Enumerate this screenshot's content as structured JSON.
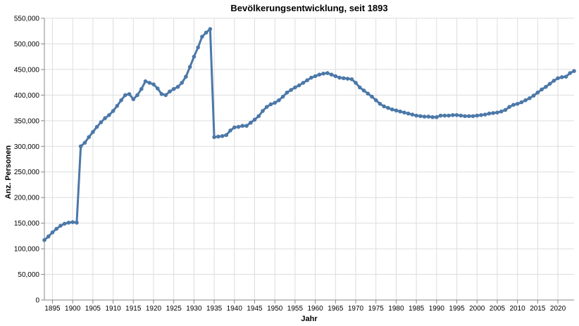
{
  "chart_data": {
    "type": "line",
    "title": "Bevölkerungsentwicklung, seit 1893",
    "xlabel": "Jahr",
    "ylabel": "Anz. Personen",
    "xlim": [
      1893,
      2024
    ],
    "ylim": [
      0,
      550000
    ],
    "grid": true,
    "x_ticks": [
      1895,
      1900,
      1905,
      1910,
      1915,
      1920,
      1925,
      1930,
      1935,
      1940,
      1945,
      1950,
      1955,
      1960,
      1965,
      1970,
      1975,
      1980,
      1985,
      1990,
      1995,
      2000,
      2005,
      2010,
      2015,
      2020
    ],
    "x_tick_labels": [
      "1895",
      "1900",
      "1905",
      "1910",
      "1915",
      "1920",
      "1925",
      "1930",
      "1935",
      "1940",
      "1945",
      "1950",
      "1955",
      "1960",
      "1965",
      "1970",
      "1975",
      "1980",
      "1985",
      "1990",
      "1995",
      "2000",
      "2005",
      "2010",
      "2015",
      "2020"
    ],
    "y_ticks": [
      0,
      50000,
      100000,
      150000,
      200000,
      250000,
      300000,
      350000,
      400000,
      450000,
      500000,
      550000
    ],
    "y_tick_labels": [
      "0",
      "50,000",
      "100,000",
      "150,000",
      "200,000",
      "250,000",
      "300,000",
      "350,000",
      "400,000",
      "450,000",
      "500,000",
      "550,000"
    ],
    "colors": {
      "line": "#4c78a8"
    },
    "series": [
      {
        "x": [
          1893,
          1894,
          1895,
          1896,
          1897,
          1898,
          1899,
          1900,
          1901,
          1902,
          1903,
          1904,
          1905,
          1906,
          1907,
          1908,
          1909,
          1910,
          1911,
          1912,
          1913,
          1914,
          1915,
          1916,
          1917,
          1918,
          1919,
          1920,
          1921,
          1922,
          1923,
          1924,
          1925,
          1926,
          1927,
          1928,
          1929,
          1930,
          1931,
          1932,
          1933,
          1934,
          1935,
          1936,
          1937,
          1938,
          1939,
          1940,
          1941,
          1942,
          1943,
          1944,
          1945,
          1946,
          1947,
          1948,
          1949,
          1950,
          1951,
          1952,
          1953,
          1954,
          1955,
          1956,
          1957,
          1958,
          1959,
          1960,
          1961,
          1962,
          1963,
          1964,
          1965,
          1966,
          1967,
          1968,
          1969,
          1970,
          1971,
          1972,
          1973,
          1974,
          1975,
          1976,
          1977,
          1978,
          1979,
          1980,
          1981,
          1982,
          1983,
          1984,
          1985,
          1986,
          1987,
          1988,
          1989,
          1990,
          1991,
          1992,
          1993,
          1994,
          1995,
          1996,
          1997,
          1998,
          1999,
          2000,
          2001,
          2002,
          2003,
          2004,
          2005,
          2006,
          2007,
          2008,
          2009,
          2010,
          2011,
          2012,
          2013,
          2014,
          2015,
          2016,
          2017,
          2018,
          2019,
          2020,
          2021,
          2022,
          2023,
          2024
        ],
        "values": [
          117000,
          124000,
          132000,
          139000,
          145000,
          149000,
          151000,
          152000,
          151000,
          300000,
          307000,
          318000,
          328000,
          338000,
          347000,
          355000,
          361000,
          369000,
          379000,
          390000,
          400000,
          402000,
          392000,
          400000,
          412000,
          427000,
          424000,
          421000,
          413000,
          402000,
          400000,
          407000,
          412000,
          416000,
          424000,
          436000,
          455000,
          475000,
          493000,
          514000,
          522000,
          529000,
          318000,
          319000,
          320000,
          322000,
          331000,
          337000,
          338000,
          340000,
          340000,
          346000,
          352000,
          359000,
          369000,
          377000,
          382000,
          385000,
          390000,
          397000,
          405000,
          410000,
          415000,
          419000,
          424000,
          429000,
          434000,
          437000,
          440000,
          442000,
          443000,
          440000,
          437000,
          434000,
          433000,
          432000,
          431000,
          424000,
          415000,
          409000,
          403000,
          397000,
          390000,
          383000,
          378000,
          375000,
          372000,
          370000,
          368000,
          366000,
          364000,
          362000,
          360000,
          359000,
          358000,
          358000,
          357000,
          357000,
          360000,
          360000,
          360000,
          361000,
          361000,
          360000,
          359000,
          359000,
          359000,
          360000,
          361000,
          362000,
          364000,
          365000,
          366000,
          368000,
          371000,
          377000,
          381000,
          383000,
          386000,
          390000,
          394000,
          399000,
          405000,
          411000,
          416000,
          422000,
          428000,
          433000,
          435000,
          436000,
          443000,
          447000
        ]
      }
    ]
  }
}
